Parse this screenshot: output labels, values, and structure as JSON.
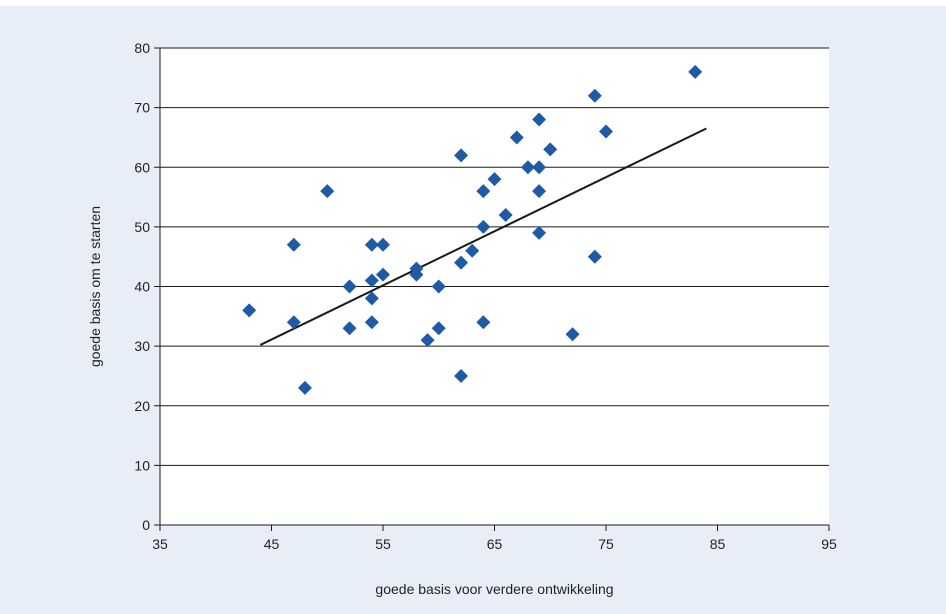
{
  "chart_data": {
    "type": "scatter",
    "title": "",
    "xlabel": "goede basis voor verdere ontwikkeling",
    "ylabel": "goede basis om te starten",
    "xlim": [
      35,
      95
    ],
    "ylim": [
      0,
      80
    ],
    "xticks": [
      35,
      45,
      55,
      65,
      75,
      85,
      95
    ],
    "yticks": [
      0,
      10,
      20,
      30,
      40,
      50,
      60,
      70,
      80
    ],
    "grid": "horizontal",
    "legend": "none",
    "colors": {
      "points": "#1f5aa6",
      "trendline": "#1a1a1a",
      "grid": "#1a1a1a",
      "plot_bg": "#ffffff",
      "frame_bg": "#e8eef7"
    },
    "points": [
      {
        "x": 43,
        "y": 36
      },
      {
        "x": 47,
        "y": 47
      },
      {
        "x": 47,
        "y": 34
      },
      {
        "x": 48,
        "y": 23
      },
      {
        "x": 50,
        "y": 56
      },
      {
        "x": 52,
        "y": 40
      },
      {
        "x": 52,
        "y": 33
      },
      {
        "x": 54,
        "y": 47
      },
      {
        "x": 54,
        "y": 41
      },
      {
        "x": 54,
        "y": 38
      },
      {
        "x": 54,
        "y": 34
      },
      {
        "x": 55,
        "y": 47
      },
      {
        "x": 55,
        "y": 42
      },
      {
        "x": 58,
        "y": 43
      },
      {
        "x": 58,
        "y": 42
      },
      {
        "x": 59,
        "y": 31
      },
      {
        "x": 60,
        "y": 40
      },
      {
        "x": 60,
        "y": 33
      },
      {
        "x": 62,
        "y": 62
      },
      {
        "x": 62,
        "y": 44
      },
      {
        "x": 62,
        "y": 25
      },
      {
        "x": 63,
        "y": 46
      },
      {
        "x": 64,
        "y": 56
      },
      {
        "x": 64,
        "y": 50
      },
      {
        "x": 64,
        "y": 34
      },
      {
        "x": 65,
        "y": 58
      },
      {
        "x": 66,
        "y": 52
      },
      {
        "x": 67,
        "y": 65
      },
      {
        "x": 68,
        "y": 60
      },
      {
        "x": 69,
        "y": 68
      },
      {
        "x": 69,
        "y": 60
      },
      {
        "x": 69,
        "y": 56
      },
      {
        "x": 69,
        "y": 49
      },
      {
        "x": 70,
        "y": 63
      },
      {
        "x": 72,
        "y": 32
      },
      {
        "x": 74,
        "y": 72
      },
      {
        "x": 74,
        "y": 45
      },
      {
        "x": 75,
        "y": 66
      },
      {
        "x": 83,
        "y": 76
      }
    ],
    "trendline": {
      "x1": 44,
      "y1": 30.2,
      "x2": 84,
      "y2": 66.5
    }
  }
}
